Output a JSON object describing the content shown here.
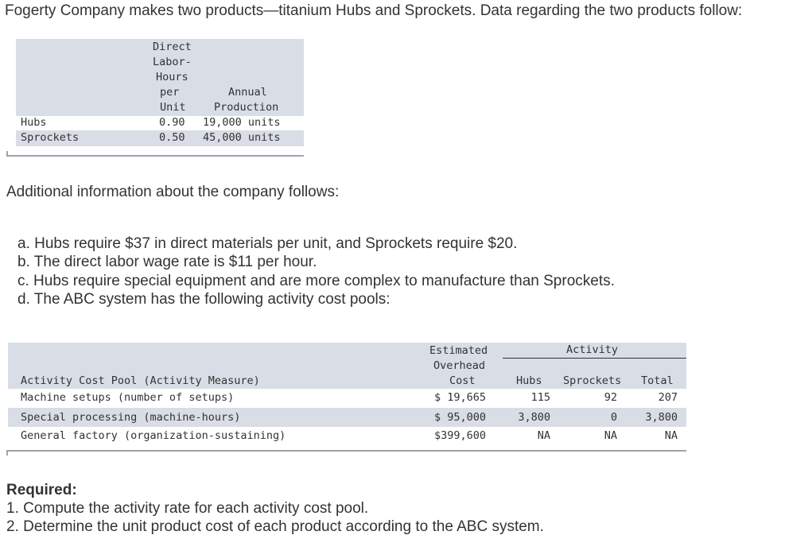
{
  "intro": "Fogerty Company makes two products—titanium Hubs and Sprockets. Data regarding the two products follow:",
  "table1": {
    "header_dlh": [
      "Direct",
      "Labor-",
      "Hours",
      "per",
      "Unit"
    ],
    "header_annual": [
      "Annual",
      "Production"
    ],
    "rows": [
      {
        "product": "Hubs",
        "dlh": "0.90",
        "production": "19,000 units"
      },
      {
        "product": "Sprockets",
        "dlh": "0.50",
        "production": "45,000 units"
      }
    ]
  },
  "additional": "Additional information about the company follows:",
  "notes": [
    "a. Hubs require $37 in direct materials per unit, and Sprockets require $20.",
    "b. The direct labor wage rate is $11 per hour.",
    "c. Hubs require special equipment and are more complex to manufacture than Sprockets.",
    "d. The ABC system has the following activity cost pools:"
  ],
  "table2": {
    "header_estimated": [
      "Estimated",
      "Overhead",
      "Cost"
    ],
    "header_activity": "Activity",
    "header_pool": "Activity Cost Pool (Activity Measure)",
    "header_hubs": "Hubs",
    "header_sprockets": "Sprockets",
    "header_total": "Total",
    "rows": [
      {
        "pool": "Machine setups (number of setups)",
        "cost": "$ 19,665",
        "hubs": "115",
        "sprockets": "92",
        "total": "207"
      },
      {
        "pool": "Special processing (machine-hours)",
        "cost": "$ 95,000",
        "hubs": "3,800",
        "sprockets": "0",
        "total": "3,800"
      },
      {
        "pool": "General factory (organization-sustaining)",
        "cost": "$399,600",
        "hubs": "NA",
        "sprockets": "NA",
        "total": "NA"
      }
    ]
  },
  "required": {
    "heading": "Required:",
    "items": [
      "1. Compute the activity rate for each activity cost pool.",
      "2. Determine the unit product cost of each product according to the ABC system."
    ]
  }
}
